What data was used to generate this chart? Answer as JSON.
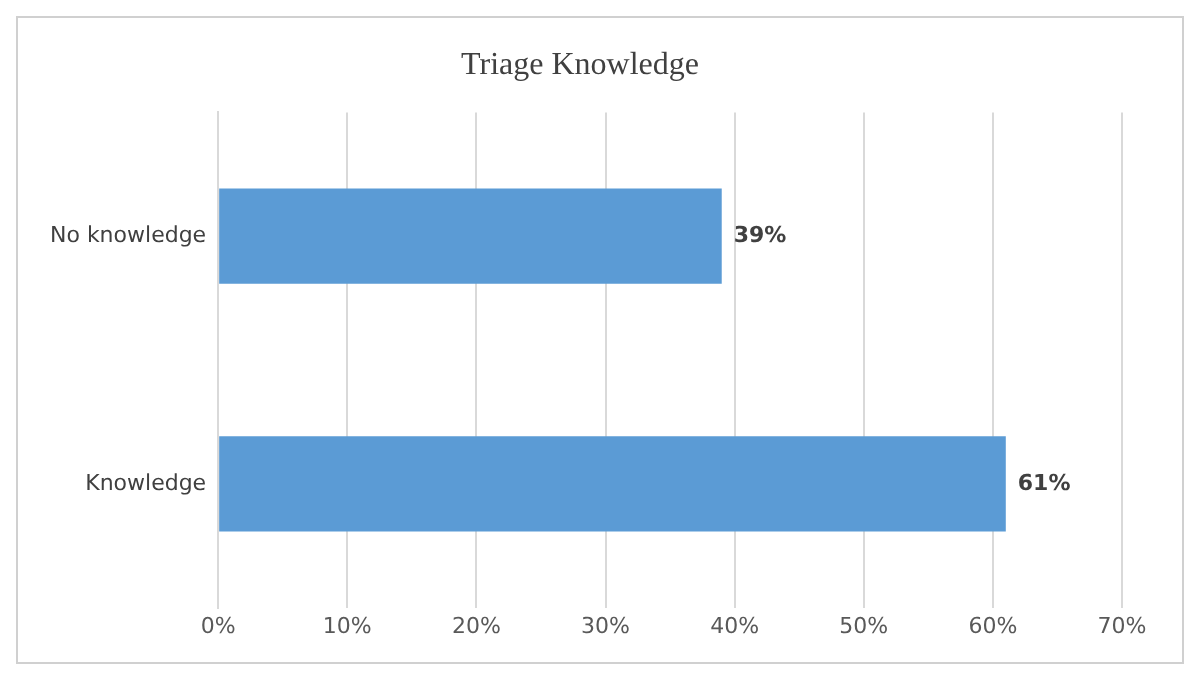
{
  "chart_data": {
    "type": "bar",
    "orientation": "horizontal",
    "title": "Triage Knowledge",
    "categories": [
      "No knowledge",
      "Knowledge"
    ],
    "values": [
      39,
      61
    ],
    "color": "#5b9bd5",
    "value_labels": [
      "39%",
      "61%"
    ],
    "xlim": [
      0,
      70
    ],
    "xticks": [
      {
        "value": 0,
        "label": "0%"
      },
      {
        "value": 10,
        "label": "10%"
      },
      {
        "value": 20,
        "label": "20%"
      },
      {
        "value": 30,
        "label": "30%"
      },
      {
        "value": 40,
        "label": "40%"
      },
      {
        "value": 50,
        "label": "50%"
      },
      {
        "value": 60,
        "label": "60%"
      },
      {
        "value": 70,
        "label": "70%"
      }
    ],
    "grid": "x",
    "legend": false
  }
}
